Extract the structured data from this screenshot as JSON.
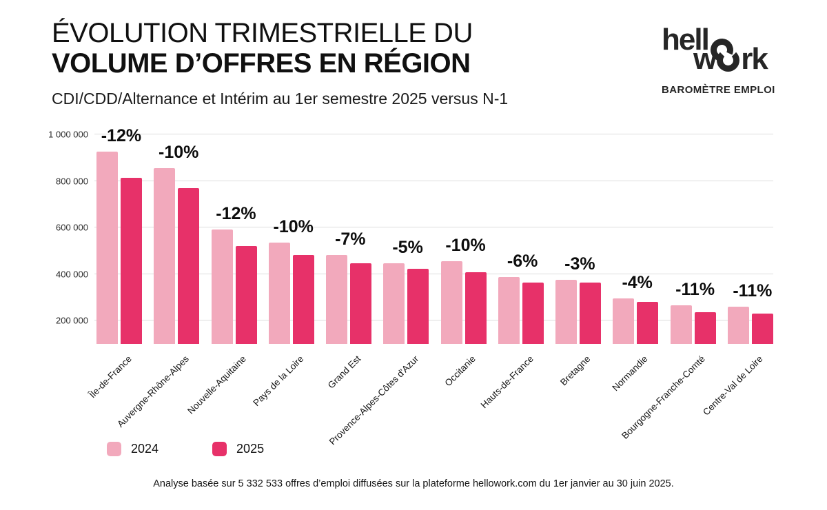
{
  "header": {
    "title_line1": "ÉVOLUTION TRIMESTRIELLE DU",
    "title_line2": "VOLUME D’OFFRES EN RÉGION",
    "subtitle": "CDI/CDD/Alternance et Intérim au 1er semestre 2025 versus N-1"
  },
  "brand": {
    "logo_part1": "hell",
    "logo_part2_pre": "w",
    "logo_part2_post": "rk",
    "tagline": "BAROMÈTRE EMPLOI"
  },
  "chart_data": {
    "type": "bar",
    "title": "Évolution trimestrielle du volume d’offres en région",
    "subtitle": "CDI/CDD/Alternance et Intérim au 1er semestre 2025 versus N-1",
    "categories": [
      "Île-de-France",
      "Auvergne-Rhône-Alpes",
      "Nouvelle-Aquitaine",
      "Pays de la Loire",
      "Grand Est",
      "Provence-Alpes-Côtes d'Azur",
      "Occitanie",
      "Hauts-de-France",
      "Bretagne",
      "Normandie",
      "Bourgogne-Franche-Comté",
      "Centre-Val de Loire"
    ],
    "series": [
      {
        "name": "2024",
        "color": "#F2A9BC",
        "values": [
          925000,
          855000,
          592000,
          536000,
          481000,
          445000,
          454000,
          388000,
          375000,
          294000,
          266000,
          259000
        ]
      },
      {
        "name": "2025",
        "color": "#E73169",
        "values": [
          814000,
          770000,
          521000,
          482000,
          447000,
          423000,
          409000,
          365000,
          364000,
          282000,
          237000,
          230000
        ]
      }
    ],
    "bar_group_labels": [
      "-12%",
      "-10%",
      "-12%",
      "-10%",
      "-7%",
      "-5%",
      "-10%",
      "-6%",
      "-3%",
      "-4%",
      "-11%",
      "-11%"
    ],
    "ylim": [
      100000,
      1000000
    ],
    "yticks": [
      200000,
      400000,
      600000,
      800000,
      1000000
    ],
    "ytick_labels": [
      "200 000",
      "400 000",
      "600 000",
      "800 000",
      "1 000 000"
    ],
    "grid": "horizontal",
    "legend_position": "bottom-left",
    "xlabel": "",
    "ylabel": ""
  },
  "legend": {
    "items": [
      {
        "label": "2024",
        "color": "#F2A9BC"
      },
      {
        "label": "2025",
        "color": "#E73169"
      }
    ]
  },
  "footer": {
    "note": "Analyse basée sur 5 332 533 offres d’emploi diffusées sur la plateforme hellowork.com du 1er janvier au 30 juin 2025."
  },
  "colors": {
    "bar_2024": "#F2A9BC",
    "bar_2025": "#E73169",
    "gridline": "#dcdcdc",
    "text": "#111111"
  }
}
